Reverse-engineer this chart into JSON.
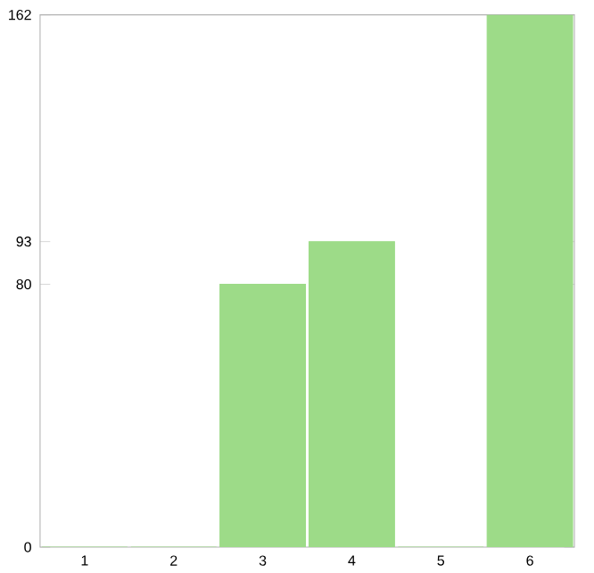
{
  "chart_data": {
    "type": "bar",
    "categories": [
      "1",
      "2",
      "3",
      "4",
      "5",
      "6"
    ],
    "values": [
      0,
      0,
      80,
      93,
      0,
      162
    ],
    "color": "#9ddb88",
    "ylim": [
      0,
      162
    ],
    "yticks": [
      0,
      80,
      93,
      162
    ],
    "grid": false
  }
}
